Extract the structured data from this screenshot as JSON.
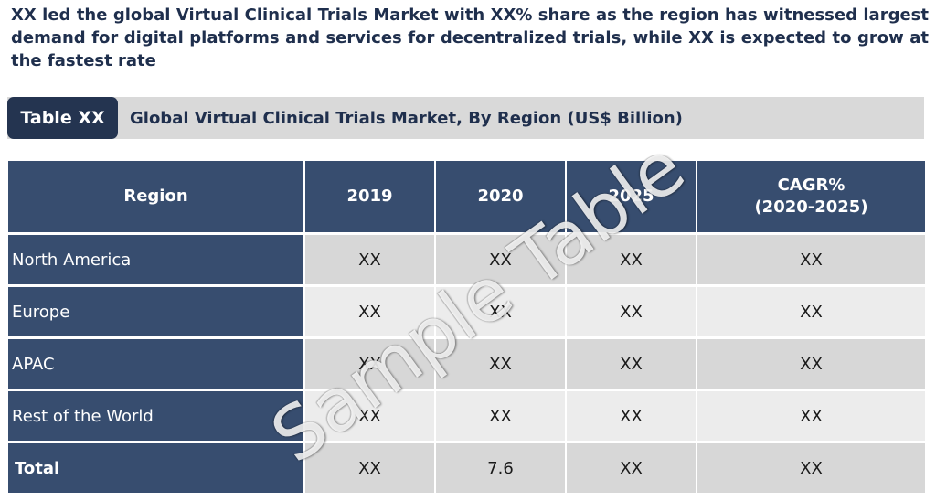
{
  "headline": "XX led the global Virtual Clinical Trials Market with XX% share as the region has witnessed largest demand for digital platforms and services for decentralized trials, while XX is expected to grow at the fastest rate",
  "caption": {
    "tag": "Table XX",
    "title": "Global Virtual Clinical Trials Market, By Region (US$ Billion)"
  },
  "table": {
    "headers": {
      "region": "Region",
      "y2019": "2019",
      "y2020": "2020",
      "y2025": "2025",
      "cagr_line1": "CAGR%",
      "cagr_line2": "(2020-2025)"
    },
    "rows": [
      {
        "region": "North America",
        "y2019": "XX",
        "y2020": "XX",
        "y2025": "XX",
        "cagr": "XX"
      },
      {
        "region": "Europe",
        "y2019": "XX",
        "y2020": "XX",
        "y2025": "XX",
        "cagr": "XX"
      },
      {
        "region": "APAC",
        "y2019": "XX",
        "y2020": "XX",
        "y2025": "XX",
        "cagr": "XX"
      },
      {
        "region": "Rest of the World",
        "y2019": "XX",
        "y2020": "XX",
        "y2025": "XX",
        "cagr": "XX"
      },
      {
        "region": "Total",
        "y2019": "XX",
        "y2020": "7.6",
        "y2025": "XX",
        "cagr": "XX"
      }
    ]
  },
  "watermark": "Sample Table"
}
